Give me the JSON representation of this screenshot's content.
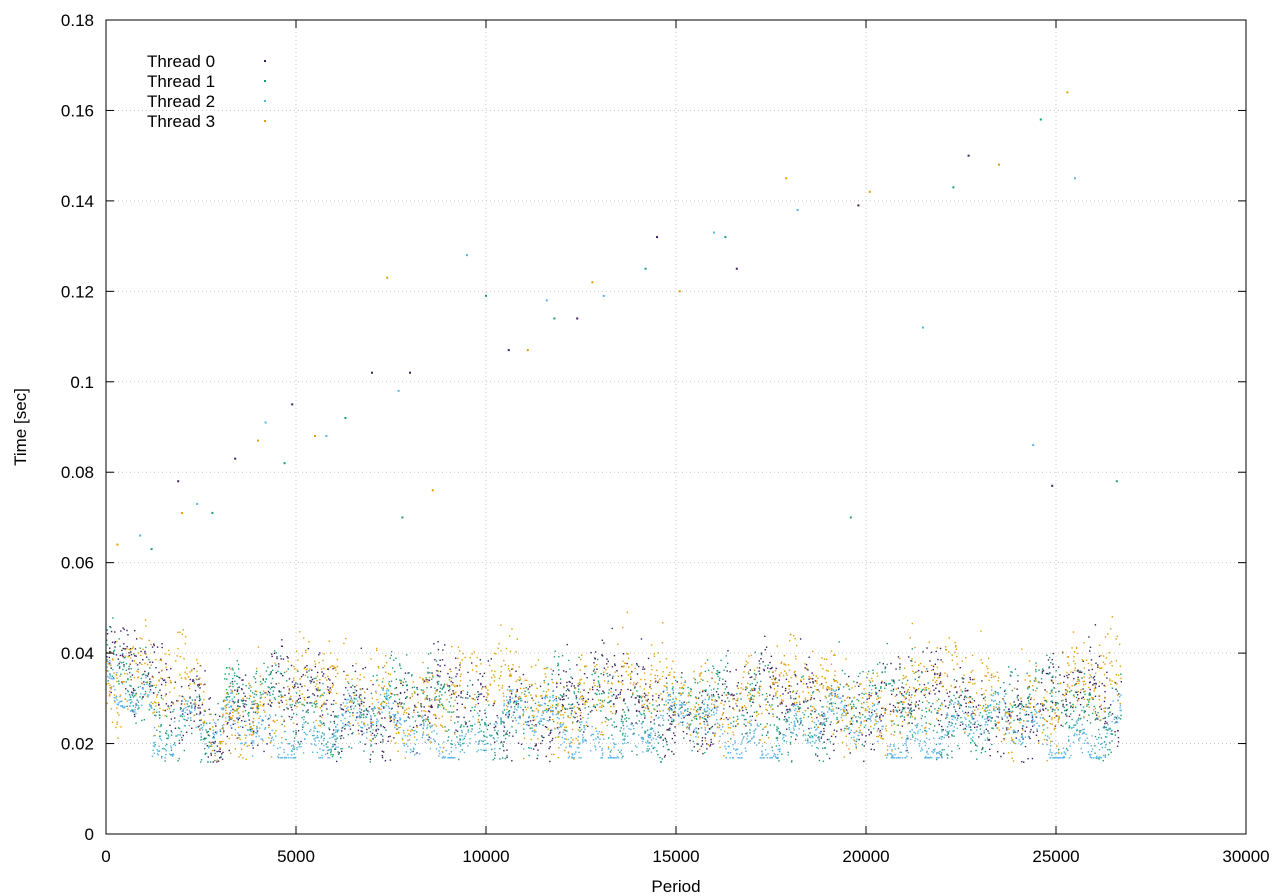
{
  "chart_data": {
    "type": "scatter",
    "title": "",
    "xlabel": "Period",
    "ylabel": "Time [sec]",
    "xlim": [
      0,
      30000
    ],
    "ylim": [
      0,
      0.18
    ],
    "xticks": [
      "0",
      "5000",
      "10000",
      "15000",
      "20000",
      "25000",
      "30000"
    ],
    "xtick_values": [
      0,
      5000,
      10000,
      15000,
      20000,
      25000,
      30000
    ],
    "yticks": [
      "0",
      "0.02",
      "0.04",
      "0.06",
      "0.08",
      "0.1",
      "0.12",
      "0.14",
      "0.16",
      "0.18"
    ],
    "ytick_values": [
      0,
      0.02,
      0.04,
      0.06,
      0.08,
      0.1,
      0.12,
      0.14,
      0.16,
      0.18
    ],
    "grid": true,
    "legend_position": "top-left",
    "data_range": {
      "x": [
        0,
        26700
      ]
    },
    "series": [
      {
        "name": "Thread 0",
        "color": "#3b1f5e",
        "approx_center": 0.029,
        "approx_spread": [
          0.02,
          0.045
        ]
      },
      {
        "name": "Thread 1",
        "color": "#1a9e77",
        "approx_center": 0.028,
        "approx_spread": [
          0.02,
          0.045
        ]
      },
      {
        "name": "Thread 2",
        "color": "#56b4e9",
        "approx_center": 0.023,
        "approx_spread": [
          0.018,
          0.03
        ]
      },
      {
        "name": "Thread 3",
        "color": "#e69f00",
        "approx_center": 0.031,
        "approx_spread": [
          0.018,
          0.045
        ]
      }
    ],
    "outliers": [
      {
        "x": 300,
        "y": 0.064
      },
      {
        "x": 900,
        "y": 0.066
      },
      {
        "x": 1200,
        "y": 0.063
      },
      {
        "x": 1900,
        "y": 0.078
      },
      {
        "x": 2000,
        "y": 0.071
      },
      {
        "x": 2400,
        "y": 0.073
      },
      {
        "x": 2800,
        "y": 0.071
      },
      {
        "x": 3400,
        "y": 0.083
      },
      {
        "x": 4000,
        "y": 0.087
      },
      {
        "x": 4200,
        "y": 0.091
      },
      {
        "x": 4700,
        "y": 0.082
      },
      {
        "x": 4900,
        "y": 0.095
      },
      {
        "x": 5500,
        "y": 0.088
      },
      {
        "x": 5800,
        "y": 0.088
      },
      {
        "x": 6300,
        "y": 0.092
      },
      {
        "x": 7000,
        "y": 0.102
      },
      {
        "x": 7400,
        "y": 0.123
      },
      {
        "x": 7700,
        "y": 0.098
      },
      {
        "x": 7800,
        "y": 0.07
      },
      {
        "x": 8000,
        "y": 0.102
      },
      {
        "x": 8600,
        "y": 0.076
      },
      {
        "x": 9500,
        "y": 0.128
      },
      {
        "x": 10000,
        "y": 0.119
      },
      {
        "x": 10600,
        "y": 0.107
      },
      {
        "x": 11100,
        "y": 0.107
      },
      {
        "x": 11600,
        "y": 0.118
      },
      {
        "x": 11800,
        "y": 0.114
      },
      {
        "x": 12400,
        "y": 0.114
      },
      {
        "x": 12800,
        "y": 0.122
      },
      {
        "x": 13100,
        "y": 0.119
      },
      {
        "x": 14200,
        "y": 0.125
      },
      {
        "x": 14500,
        "y": 0.132
      },
      {
        "x": 15100,
        "y": 0.12
      },
      {
        "x": 16000,
        "y": 0.133
      },
      {
        "x": 16300,
        "y": 0.132
      },
      {
        "x": 16600,
        "y": 0.125
      },
      {
        "x": 17900,
        "y": 0.145
      },
      {
        "x": 18200,
        "y": 0.138
      },
      {
        "x": 19600,
        "y": 0.07
      },
      {
        "x": 19800,
        "y": 0.139
      },
      {
        "x": 20100,
        "y": 0.142
      },
      {
        "x": 21500,
        "y": 0.112
      },
      {
        "x": 22300,
        "y": 0.143
      },
      {
        "x": 22700,
        "y": 0.15
      },
      {
        "x": 23500,
        "y": 0.148
      },
      {
        "x": 24400,
        "y": 0.086
      },
      {
        "x": 24600,
        "y": 0.158
      },
      {
        "x": 24900,
        "y": 0.077
      },
      {
        "x": 25300,
        "y": 0.164
      },
      {
        "x": 25500,
        "y": 0.145
      },
      {
        "x": 26600,
        "y": 0.078
      }
    ]
  }
}
